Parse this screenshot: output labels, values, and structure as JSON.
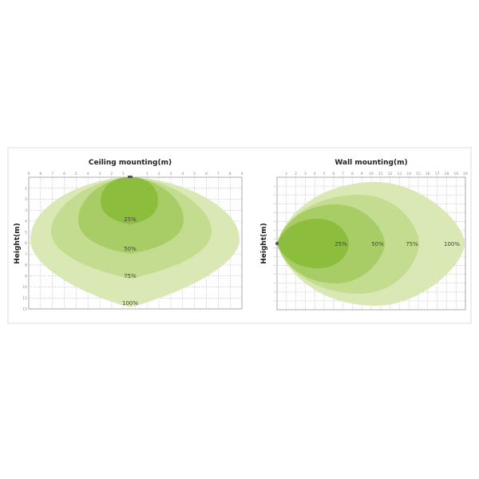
{
  "chart_data": [
    {
      "type": "area",
      "title": "Ceiling mounting(m)",
      "ylabel": "Height(m)",
      "x_ticks": [
        "9",
        "8",
        "7",
        "6",
        "5",
        "4",
        "3",
        "2",
        "1",
        "",
        "1",
        "2",
        "3",
        "4",
        "5",
        "6",
        "7",
        "8",
        "9"
      ],
      "y_ticks": [
        "1",
        "2",
        "3",
        "4",
        "5",
        "6",
        "7",
        "8",
        "9",
        "10",
        "11",
        "12"
      ],
      "grid": true,
      "series": [
        {
          "name": "100%",
          "color": "#d9e8b5"
        },
        {
          "name": "75%",
          "color": "#c4dc8f"
        },
        {
          "name": "50%",
          "color": "#a9cd66"
        },
        {
          "name": "25%",
          "color": "#8cbd3c"
        }
      ]
    },
    {
      "type": "area",
      "title": "Wall mounting(m)",
      "ylabel": "Height(m)",
      "x_ticks": [
        "1",
        "2",
        "3",
        "4",
        "5",
        "6",
        "7",
        "8",
        "9",
        "10",
        "11",
        "12",
        "13",
        "14",
        "15",
        "16",
        "17",
        "18",
        "19",
        "20"
      ],
      "grid": true,
      "series": [
        {
          "name": "100%",
          "color": "#d9e8b5"
        },
        {
          "name": "75%",
          "color": "#c4dc8f"
        },
        {
          "name": "50%",
          "color": "#a9cd66"
        },
        {
          "name": "25%",
          "color": "#8cbd3c"
        }
      ]
    }
  ]
}
